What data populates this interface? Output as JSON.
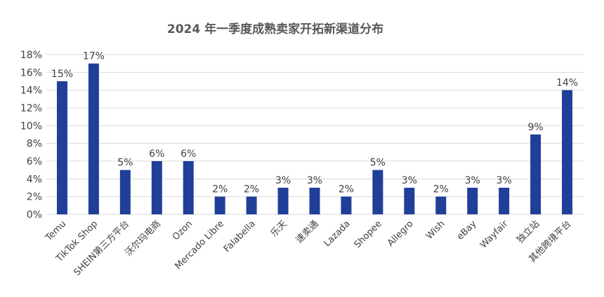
{
  "chart_data": {
    "type": "bar",
    "title": "2024 年一季度成熟卖家开拓新渠道分布",
    "xlabel": "",
    "ylabel": "",
    "ylim": [
      0,
      18
    ],
    "ytick_step": 2,
    "ytick_labels": [
      "0%",
      "2%",
      "4%",
      "6%",
      "8%",
      "10%",
      "12%",
      "14%",
      "16%",
      "18%"
    ],
    "grid": true,
    "legend": "none",
    "bar_color": "#1f3f99",
    "categories": [
      "Temu",
      "TikTok Shop",
      "SHEIN第三方平台",
      "沃尔玛电商",
      "Ozon",
      "Mercado Libre",
      "Falabella",
      "乐天",
      "速卖通",
      "Lazada",
      "Shopee",
      "Allegro",
      "Wish",
      "eBay",
      "Wayfair",
      "独立站",
      "其他跨境平台"
    ],
    "values": [
      15,
      17,
      5,
      6,
      6,
      2,
      2,
      3,
      3,
      2,
      5,
      3,
      2,
      3,
      3,
      9,
      14
    ],
    "data_labels": [
      "15%",
      "17%",
      "5%",
      "6%",
      "6%",
      "2%",
      "2%",
      "3%",
      "3%",
      "2%",
      "5%",
      "3%",
      "2%",
      "3%",
      "3%",
      "9%",
      "14%"
    ]
  }
}
